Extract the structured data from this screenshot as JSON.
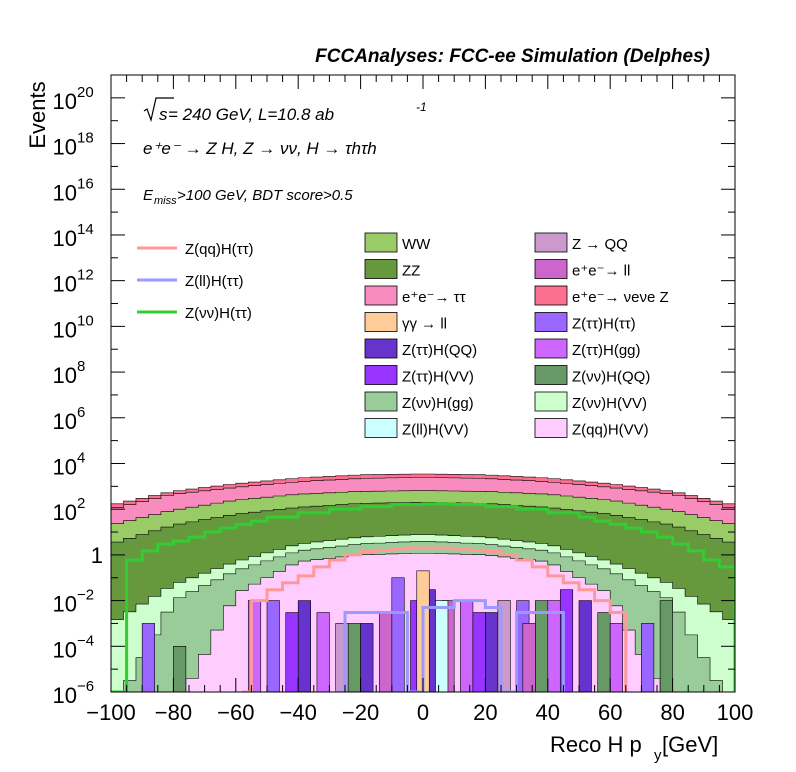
{
  "header": "FCCAnalyses: FCC-ee Simulation (Delphes)",
  "annotations": {
    "energy_root": "s",
    "energy_text": " = 240 GeV, L=10.8 ab",
    "lumi_exp": "-1",
    "process": "e⁺e⁻ → Z H, Z → νν, H → τhτh",
    "cut_sub": "miss",
    "cut_rest": ">100 GeV, BDT score>0.5"
  },
  "chart_data": {
    "type": "histogram",
    "xlabel": "Reco H p",
    "xlabel_sub": "y",
    "xlabel_unit": " [GeV]",
    "ylabel": "Events",
    "xlim": [
      -100,
      100
    ],
    "ylim": [
      1e-06,
      1e+21
    ],
    "log_y": true,
    "x_ticks": [
      "−100",
      "−80",
      "−60",
      "−40",
      "−20",
      "0",
      "20",
      "40",
      "60",
      "80",
      "100"
    ],
    "y_ticks": [
      {
        "base": "10",
        "exp": "−6",
        "value": 1e-06
      },
      {
        "base": "10",
        "exp": "−4",
        "value": 0.0001
      },
      {
        "base": "10",
        "exp": "−2",
        "value": 0.01
      },
      {
        "base": "1",
        "exp": "",
        "value": 1
      },
      {
        "base": "10",
        "exp": "2",
        "value": 100.0
      },
      {
        "base": "10",
        "exp": "4",
        "value": 10000.0
      },
      {
        "base": "10",
        "exp": "6",
        "value": 1000000.0
      },
      {
        "base": "10",
        "exp": "8",
        "value": 100000000.0
      },
      {
        "base": "10",
        "exp": "10",
        "value": 10000000000.0
      },
      {
        "base": "10",
        "exp": "12",
        "value": 1000000000000.0
      },
      {
        "base": "10",
        "exp": "14",
        "value": 100000000000000.0
      },
      {
        "base": "10",
        "exp": "16",
        "value": 1e+16
      },
      {
        "base": "10",
        "exp": "18",
        "value": 1e+18
      },
      {
        "base": "10",
        "exp": "20",
        "value": 1e+20
      }
    ],
    "stack_envelope": [
      {
        "name": "e⁺e⁻ → ννZ",
        "color": "#fb6f8f",
        "x": [
          -100,
          -80,
          -60,
          -40,
          -20,
          0,
          20,
          40,
          60,
          80,
          100
        ],
        "y": [
          150,
          600,
          1300,
          2300,
          3200,
          3500,
          3200,
          2300,
          1300,
          600,
          150
        ]
      },
      {
        "name": "e⁺e⁻ → ττ",
        "color": "#f88cbe",
        "x": [
          -100,
          -80,
          -60,
          -40,
          -20,
          0,
          20,
          40,
          60,
          80,
          100
        ],
        "y": [
          100,
          450,
          900,
          1600,
          2200,
          2500,
          2200,
          1600,
          900,
          450,
          100
        ]
      },
      {
        "name": "WW",
        "color": "#99cc66",
        "x": [
          -100,
          -80,
          -60,
          -40,
          -20,
          0,
          20,
          40,
          60,
          80,
          100
        ],
        "y": [
          20,
          90,
          250,
          450,
          600,
          650,
          600,
          450,
          250,
          90,
          20
        ]
      },
      {
        "name": "ZZ",
        "color": "#66993d",
        "x": [
          -100,
          -80,
          -60,
          -40,
          -20,
          0,
          20,
          40,
          60,
          80,
          100
        ],
        "y": [
          3,
          20,
          60,
          120,
          180,
          200,
          180,
          120,
          60,
          20,
          3
        ]
      },
      {
        "name": "Z(νν)H(VV)",
        "color": "#ccffcc",
        "x": [
          -100,
          -80,
          -60,
          -40,
          -20,
          0,
          20,
          40,
          60,
          80,
          100
        ],
        "y": [
          0.001,
          0.05,
          0.5,
          3,
          6,
          8,
          6,
          3,
          0.5,
          0.05,
          0.001
        ]
      },
      {
        "name": "Z(νν)H(gg)",
        "color": "#99cc99",
        "x": [
          -100,
          -80,
          -60,
          -40,
          -20,
          0,
          20,
          40,
          60,
          80,
          100
        ],
        "y": [
          0,
          0.01,
          0.2,
          1.5,
          3,
          4,
          3,
          1.5,
          0.2,
          0.01,
          0
        ]
      },
      {
        "name": "Z(qq)H(VV)",
        "color": "#ffccff",
        "x": [
          -100,
          -80,
          -60,
          -40,
          -20,
          0,
          20,
          40,
          60,
          80,
          100
        ],
        "y": [
          0,
          0,
          0.02,
          0.5,
          1,
          1.2,
          1,
          0.5,
          0.02,
          0,
          0
        ]
      }
    ],
    "overlay_lines": [
      {
        "name": "Z(qq)H(ττ)",
        "color": "#ff9999",
        "x": [
          -58,
          -55,
          -50,
          -45,
          -40,
          -35,
          -30,
          -25,
          -20,
          -15,
          -10,
          -5,
          0,
          5,
          10,
          15,
          20,
          25,
          30,
          35,
          40,
          45,
          50,
          55,
          60,
          65
        ],
        "y": [
          1e-06,
          0.01,
          0.03,
          0.06,
          0.12,
          0.3,
          0.6,
          1,
          1.4,
          1.6,
          1.8,
          2,
          2,
          2,
          1.8,
          1.6,
          1.4,
          1,
          0.6,
          0.3,
          0.12,
          0.06,
          0.03,
          0.01,
          0.003,
          1e-06
        ]
      },
      {
        "name": "Z(ll)H(ττ)",
        "color": "#9999ff",
        "x": [
          -28,
          -25,
          -20,
          -15,
          -10,
          -5,
          0,
          5,
          10,
          15,
          20,
          25,
          30,
          35,
          40,
          45
        ],
        "y": [
          1e-06,
          0.003,
          0.003,
          0.003,
          0.003,
          1e-06,
          0.005,
          0.005,
          0.01,
          0.01,
          0.005,
          1e-06,
          0.003,
          0.003,
          0.003,
          1e-06
        ]
      },
      {
        "name": "Z(νν)H(ττ)",
        "color": "#33cc33",
        "x": [
          -100,
          -95,
          -90,
          -85,
          -80,
          -75,
          -70,
          -65,
          -60,
          -55,
          -50,
          -40,
          -30,
          -20,
          -10,
          0,
          10,
          20,
          30,
          40,
          50,
          55,
          60,
          65,
          70,
          75,
          80,
          85,
          90,
          95,
          100
        ],
        "y": [
          1e-06,
          0.6,
          1.5,
          3,
          4,
          6,
          10,
          15,
          22,
          30,
          45,
          70,
          100,
          130,
          160,
          170,
          160,
          130,
          100,
          70,
          45,
          30,
          22,
          15,
          10,
          6,
          3,
          1.5,
          0.6,
          0.3,
          1e-06
        ]
      }
    ],
    "legend_overlay": [
      {
        "label": "Z(qq)H(ττ)",
        "color": "#ff9999"
      },
      {
        "label": "Z(ll)H(ττ)",
        "color": "#9999ff"
      },
      {
        "label": "Z(νν)H(ττ)",
        "color": "#33cc33"
      }
    ],
    "legend_stack": [
      {
        "label": "WW",
        "color": "#99cc66"
      },
      {
        "label": "Z → QQ",
        "color": "#cc99cc"
      },
      {
        "label": "ZZ",
        "color": "#66993d"
      },
      {
        "label": "e⁺e⁻→ ll",
        "color": "#cc66cc"
      },
      {
        "label": "e⁺e⁻→ ττ",
        "color": "#f88cbe"
      },
      {
        "label": "e⁺e⁻→ νeνe Z",
        "color": "#fb6f8f"
      },
      {
        "label": "γγ → ll",
        "color": "#ffcc99"
      },
      {
        "label": "Z(ττ)H(ττ)",
        "color": "#9966ff"
      },
      {
        "label": "Z(ττ)H(QQ)",
        "color": "#6633cc"
      },
      {
        "label": "Z(ττ)H(gg)",
        "color": "#cc66ff"
      },
      {
        "label": "Z(ττ)H(VV)",
        "color": "#9933ff"
      },
      {
        "label": "Z(νν)H(QQ)",
        "color": "#669966"
      },
      {
        "label": "Z(νν)H(gg)",
        "color": "#99cc99"
      },
      {
        "label": "Z(νν)H(VV)",
        "color": "#ccffcc"
      },
      {
        "label": "Z(ll)H(VV)",
        "color": "#ccffff"
      },
      {
        "label": "Z(qq)H(VV)",
        "color": "#ffccff"
      }
    ],
    "sparse_bars": [
      {
        "name": "Z(νν)H(QQ)",
        "color": "#669966",
        "x": [
          -78,
          -22,
          38,
          58,
          78
        ],
        "y": [
          0.0001,
          0.001,
          0.01,
          0.003,
          0.01
        ]
      },
      {
        "name": "Z(ττ)H(ττ)",
        "color": "#9966ff",
        "x": [
          -88,
          -48,
          -8,
          32,
          72
        ],
        "y": [
          0.001,
          0.01,
          0.1,
          0.01,
          0.001
        ]
      },
      {
        "name": "Z(ττ)H(QQ)",
        "color": "#6633cc",
        "x": [
          -38,
          -18,
          2,
          22,
          52
        ],
        "y": [
          0.01,
          0.001,
          0.03,
          0.003,
          0.01
        ]
      },
      {
        "name": "Z(ττ)H(gg)",
        "color": "#cc66ff",
        "x": [
          -54,
          -32,
          14,
          42,
          62
        ],
        "y": [
          0.01,
          0.003,
          0.01,
          0.01,
          0.001
        ]
      },
      {
        "name": "Z(ττ)H(VV)",
        "color": "#9933ff",
        "x": [
          -42,
          -2,
          18,
          46
        ],
        "y": [
          0.003,
          0.01,
          0.003,
          0.03
        ]
      },
      {
        "name": "Z → QQ",
        "color": "#cc99cc",
        "x": [
          -26,
          26
        ],
        "y": [
          0.001,
          0.01
        ]
      },
      {
        "name": "e⁺e⁻→ ll",
        "color": "#cc66cc",
        "x": [
          -12,
          8,
          34
        ],
        "y": [
          0.003,
          0.01,
          0.001
        ]
      },
      {
        "name": "γγ → ll",
        "color": "#ffcc99",
        "x": [
          0
        ],
        "y": [
          0.2
        ]
      },
      {
        "name": "Z(ll)H(VV)",
        "color": "#ccffff",
        "x": [
          6
        ],
        "y": [
          0.01
        ]
      }
    ]
  }
}
